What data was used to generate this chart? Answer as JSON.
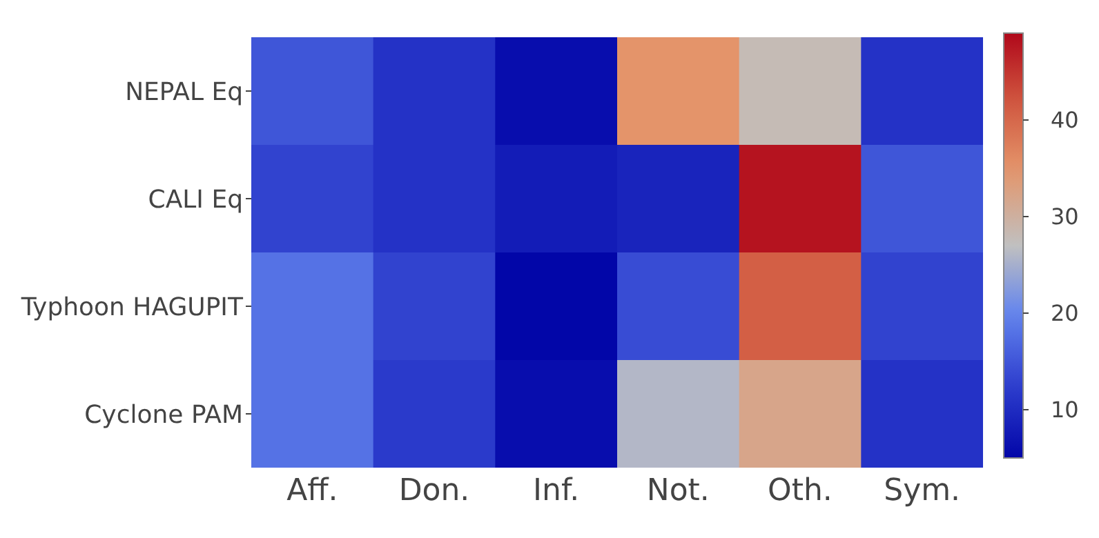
{
  "chart_data": {
    "type": "heatmap",
    "categories": [
      "Aff.",
      "Don.",
      "Inf.",
      "Not.",
      "Oth.",
      "Sym."
    ],
    "y_categories": [
      "NEPAL Eq",
      "CALI Eq",
      "Typhoon HAGUPIT",
      "Cyclone PAM"
    ],
    "cells": [
      [
        15,
        11,
        6,
        35,
        28,
        11
      ],
      [
        13,
        11,
        8,
        9,
        48,
        15
      ],
      [
        18,
        13,
        5,
        14,
        41,
        13
      ],
      [
        18,
        12,
        6,
        26,
        32,
        11
      ]
    ],
    "clim": [
      5,
      49
    ],
    "cticks": [
      10,
      20,
      30,
      40
    ]
  }
}
